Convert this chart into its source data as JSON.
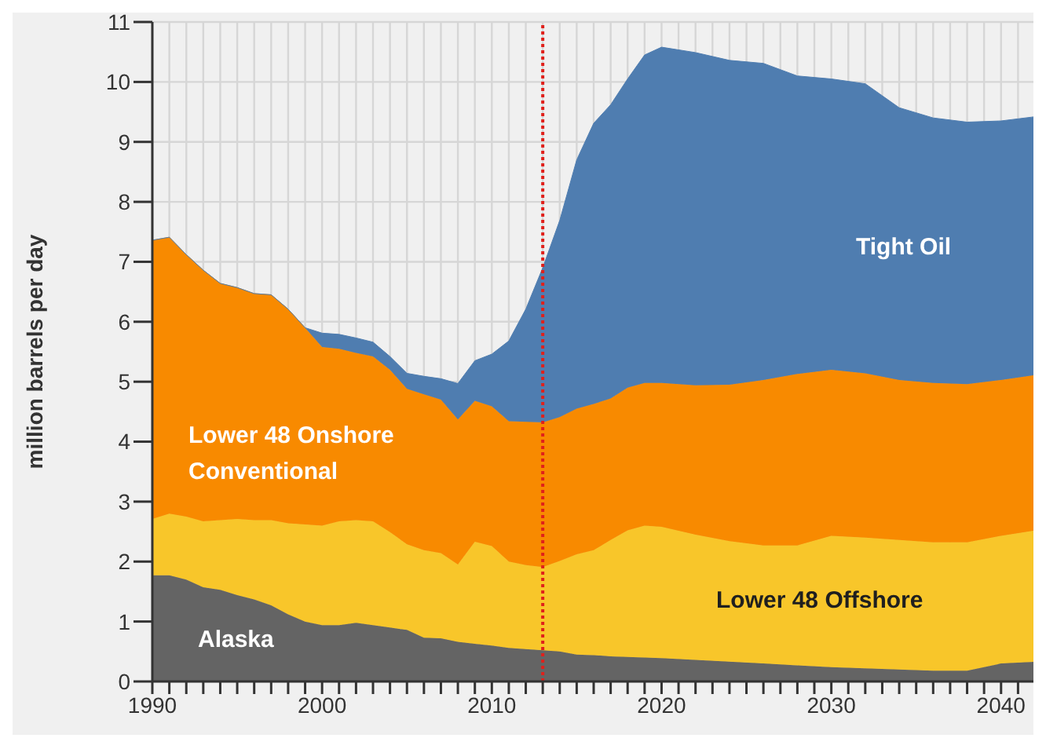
{
  "chart_data": {
    "type": "area",
    "stacked": true,
    "ylabel": "million barrels per day",
    "x": [
      1990,
      1991,
      1992,
      1993,
      1994,
      1995,
      1996,
      1997,
      1998,
      1999,
      2000,
      2001,
      2002,
      2003,
      2004,
      2005,
      2006,
      2007,
      2008,
      2009,
      2010,
      2011,
      2012,
      2013,
      2014,
      2015,
      2016,
      2017,
      2018,
      2019,
      2020,
      2022,
      2024,
      2026,
      2028,
      2030,
      2032,
      2034,
      2036,
      2038,
      2040,
      2042
    ],
    "series": [
      {
        "name": "Alaska",
        "color": "#646464",
        "values": [
          1.77,
          1.77,
          1.7,
          1.57,
          1.53,
          1.44,
          1.37,
          1.27,
          1.12,
          1.0,
          0.94,
          0.94,
          0.98,
          0.94,
          0.9,
          0.86,
          0.73,
          0.72,
          0.66,
          0.63,
          0.6,
          0.56,
          0.54,
          0.52,
          0.5,
          0.45,
          0.44,
          0.42,
          0.41,
          0.4,
          0.39,
          0.36,
          0.33,
          0.3,
          0.27,
          0.24,
          0.22,
          0.2,
          0.18,
          0.18,
          0.3,
          0.33
        ]
      },
      {
        "name": "Lower 48 Offshore",
        "color": "#f8c62a",
        "values": [
          0.94,
          1.03,
          1.05,
          1.1,
          1.16,
          1.27,
          1.32,
          1.42,
          1.52,
          1.62,
          1.66,
          1.73,
          1.71,
          1.73,
          1.59,
          1.43,
          1.46,
          1.42,
          1.29,
          1.7,
          1.66,
          1.44,
          1.4,
          1.39,
          1.51,
          1.67,
          1.75,
          1.94,
          2.11,
          2.2,
          2.19,
          2.09,
          2.01,
          1.97,
          2.0,
          2.19,
          2.18,
          2.16,
          2.14,
          2.14,
          2.13,
          2.19
        ]
      },
      {
        "name": "Lower 48 Onshore Conventional",
        "color": "#f88a00",
        "values": [
          4.65,
          4.61,
          4.37,
          4.19,
          3.95,
          3.86,
          3.78,
          3.76,
          3.57,
          3.28,
          2.98,
          2.88,
          2.79,
          2.75,
          2.71,
          2.59,
          2.6,
          2.56,
          2.42,
          2.35,
          2.33,
          2.34,
          2.39,
          2.41,
          2.4,
          2.43,
          2.44,
          2.36,
          2.38,
          2.38,
          2.4,
          2.49,
          2.61,
          2.76,
          2.86,
          2.77,
          2.74,
          2.67,
          2.66,
          2.64,
          2.6,
          2.59
        ]
      },
      {
        "name": "Tight Oil",
        "color": "#4f7db0",
        "values": [
          0,
          0,
          0,
          0,
          0,
          0,
          0,
          0,
          0,
          0,
          0.23,
          0.24,
          0.25,
          0.24,
          0.22,
          0.26,
          0.3,
          0.35,
          0.6,
          0.67,
          0.87,
          1.34,
          1.88,
          2.58,
          3.28,
          4.15,
          4.68,
          4.9,
          5.15,
          5.47,
          5.6,
          5.55,
          5.41,
          5.28,
          4.97,
          4.85,
          4.83,
          4.54,
          4.42,
          4.37,
          4.32,
          4.31
        ]
      }
    ],
    "xlim": [
      1990,
      2042
    ],
    "xticks": [
      1990,
      {
        "value": 1991,
        "label": null
      },
      {
        "value": 1992,
        "label": null
      },
      {
        "value": 1993,
        "label": null
      },
      {
        "value": 1994,
        "label": null
      },
      {
        "value": 1995,
        "label": null
      },
      {
        "value": 1996,
        "label": null
      },
      {
        "value": 1997,
        "label": null
      },
      {
        "value": 1998,
        "label": null
      },
      {
        "value": 1999,
        "label": null
      },
      2000,
      {
        "value": 2001,
        "label": null
      },
      {
        "value": 2002,
        "label": null
      },
      {
        "value": 2003,
        "label": null
      },
      {
        "value": 2004,
        "label": null
      },
      {
        "value": 2005,
        "label": null
      },
      {
        "value": 2006,
        "label": null
      },
      {
        "value": 2007,
        "label": null
      },
      {
        "value": 2008,
        "label": null
      },
      {
        "value": 2009,
        "label": null
      },
      2010,
      {
        "value": 2011,
        "label": null
      },
      {
        "value": 2012,
        "label": null
      },
      {
        "value": 2013,
        "label": null
      },
      {
        "value": 2014,
        "label": null
      },
      {
        "value": 2015,
        "label": null
      },
      {
        "value": 2016,
        "label": null
      },
      {
        "value": 2017,
        "label": null
      },
      {
        "value": 2018,
        "label": null
      },
      {
        "value": 2019,
        "label": null
      },
      2020,
      {
        "value": 2021,
        "label": null
      },
      {
        "value": 2022,
        "label": null
      },
      {
        "value": 2023,
        "label": null
      },
      {
        "value": 2024,
        "label": null
      },
      {
        "value": 2025,
        "label": null
      },
      {
        "value": 2026,
        "label": null
      },
      {
        "value": 2027,
        "label": null
      },
      {
        "value": 2028,
        "label": null
      },
      {
        "value": 2029,
        "label": null
      },
      2030,
      {
        "value": 2031,
        "label": null
      },
      {
        "value": 2032,
        "label": null
      },
      {
        "value": 2033,
        "label": null
      },
      {
        "value": 2034,
        "label": null
      },
      {
        "value": 2035,
        "label": null
      },
      {
        "value": 2036,
        "label": null
      },
      {
        "value": 2037,
        "label": null
      },
      {
        "value": 2038,
        "label": null
      },
      {
        "value": 2039,
        "label": null
      },
      2040,
      {
        "value": 2041,
        "label": null
      },
      {
        "value": 2042,
        "label": null
      }
    ],
    "ylim": [
      0,
      11
    ],
    "yticks": [
      0,
      1,
      2,
      3,
      4,
      5,
      6,
      7,
      8,
      9,
      10,
      11
    ],
    "grid": true,
    "legend": false,
    "ref_lines": [
      {
        "axis": "x",
        "value": 2013,
        "color": "#e0201b",
        "line_style": "dotted"
      }
    ]
  }
}
